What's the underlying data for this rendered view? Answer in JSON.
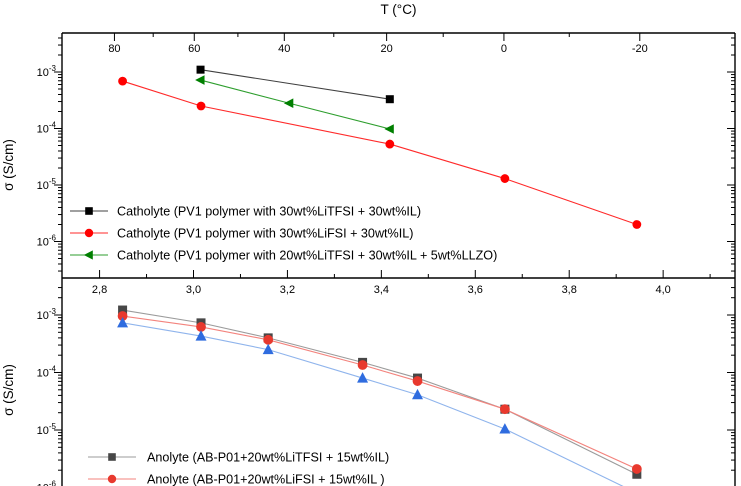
{
  "labels": {
    "top_axis_title": "T (°C)",
    "y_axis_label": "σ (S/cm)"
  },
  "chart_data": [
    {
      "id": "catholyte-panel",
      "type": "line",
      "y_scale": "log",
      "top_axis_title": "T (°C)",
      "ylabel": "σ (S/cm)",
      "top_temperature_ticks": {
        "labels": [
          "80",
          "60",
          "40",
          "20",
          "0",
          "-20"
        ],
        "values": [
          80,
          60,
          40,
          20,
          0,
          -20
        ],
        "minor_values": [
          70,
          50,
          30,
          10,
          -10
        ]
      },
      "y_tick_exponents": [
        -3,
        -4,
        -5,
        -6
      ],
      "legend_position": "bottom-left-inside",
      "grid": false,
      "series": [
        {
          "name": "Catholyte (PV1 polymer with 30wt%LiTFSI + 30wt%IL)",
          "marker": "square",
          "color": "#000000",
          "line_color": "#404040",
          "x_1000_over_T": [
            3.015,
            3.418
          ],
          "sigma_S_cm": [
            0.0011,
            0.00033
          ]
        },
        {
          "name": "Catholyte (PV1 polymer with 30wt%LiFSI + 30wt%IL)",
          "marker": "circle",
          "color": "#ff0000",
          "line_color": "#ff2a2a",
          "x_1000_over_T": [
            2.849,
            3.016,
            3.418,
            3.663,
            3.944
          ],
          "sigma_S_cm": [
            0.00069,
            0.00025,
            5.3e-05,
            1.3e-05,
            2e-06
          ]
        },
        {
          "name": "Catholyte (PV1 polymer with 20wt%LiTFSI + 30wt%IL + 5wt%LLZO)",
          "marker": "triangle-left",
          "color": "#007f00",
          "line_color": "#2e9e2e",
          "x_1000_over_T": [
            3.015,
            3.204,
            3.418
          ],
          "sigma_S_cm": [
            0.00072,
            0.00028,
            9.8e-05
          ]
        }
      ]
    },
    {
      "id": "anolyte-panel",
      "type": "line",
      "y_scale": "log",
      "ylabel": "σ (S/cm)",
      "x_tick_labels": [
        "2,8",
        "3,0",
        "3,2",
        "3,4",
        "3,6",
        "3,8",
        "4,0"
      ],
      "x_tick_values": [
        2.8,
        3.0,
        3.2,
        3.4,
        3.6,
        3.8,
        4.0
      ],
      "x_minor_tick_values": [
        2.9,
        3.1,
        3.3,
        3.5,
        3.7,
        3.9,
        4.1
      ],
      "y_tick_exponents": [
        -3,
        -4,
        -5,
        -6
      ],
      "legend_position": "bottom-left-inside",
      "grid": false,
      "series": [
        {
          "name": "Anolyte (AB-P01+20wt%LiTFSI + 15wt%IL)",
          "marker": "square",
          "color": "#474747",
          "line_color": "#9b9b9b",
          "x_1000_over_T": [
            2.849,
            3.016,
            3.159,
            3.36,
            3.477,
            3.663,
            3.944
          ],
          "sigma_S_cm": [
            0.00122,
            0.00073,
            0.0004,
            0.00015,
            8e-05,
            2.3e-05,
            1.7e-06
          ]
        },
        {
          "name": "Anolyte (AB-P01+20wt%LiFSI + 15wt%IL )",
          "marker": "circle",
          "color": "#e8392e",
          "line_color": "#f3837d",
          "x_1000_over_T": [
            2.849,
            3.016,
            3.159,
            3.36,
            3.477,
            3.663,
            3.944
          ],
          "sigma_S_cm": [
            0.00096,
            0.00062,
            0.00037,
            0.000135,
            7.1e-05,
            2.3e-05,
            2.1e-06
          ]
        },
        {
          "name": "",
          "legend_visible": false,
          "marker": "triangle-up",
          "color": "#2f6cdf",
          "line_color": "#8fb4ec",
          "x_1000_over_T": [
            2.849,
            3.016,
            3.159,
            3.36,
            3.477,
            3.663,
            3.944
          ],
          "sigma_S_cm": [
            0.00073,
            0.00043,
            0.00025,
            8e-05,
            4.1e-05,
            1.04e-05,
            8e-07
          ]
        }
      ]
    }
  ]
}
